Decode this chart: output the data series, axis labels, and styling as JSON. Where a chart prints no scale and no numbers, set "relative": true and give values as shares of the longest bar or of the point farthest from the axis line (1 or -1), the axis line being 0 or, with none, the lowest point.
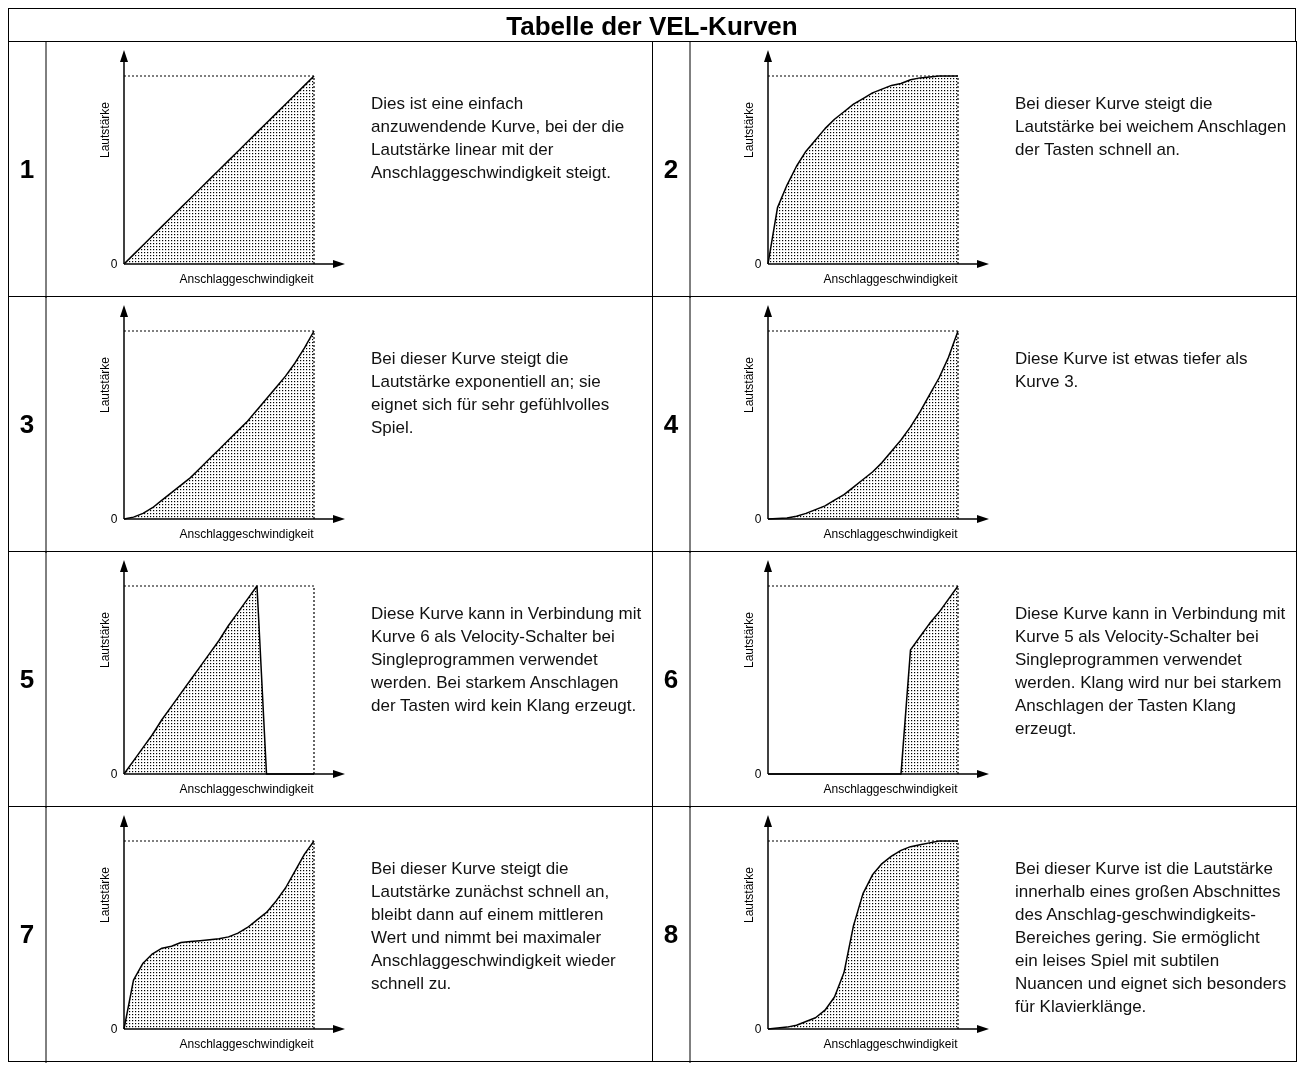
{
  "chart_data": [
    {
      "type": "other",
      "title": "Tabelle der VEL-Kurven"
    },
    {
      "type": "area",
      "title": "1",
      "relative": true,
      "categories": [
        null,
        null,
        null,
        null,
        null,
        null,
        null,
        null,
        null,
        null,
        null,
        null,
        null,
        null,
        null,
        null,
        null,
        null,
        null,
        null,
        null
      ],
      "xlabel": "Anschlaggeschwindigkeit",
      "ylabel": "Lautstärke",
      "ref_lines": [
        {
          "axis": "y",
          "value": 1,
          "line_style": "dotted"
        }
      ],
      "annotations": [
        "Dies ist eine einfach anzuwendende Kurve, bei der die Lautstärke linear mit der Anschlaggeschwindigkeit steigt.",
        "0"
      ],
      "series": [
        {
          "color": "#000000",
          "values": [
            0,
            0.05,
            0.1,
            0.15,
            0.2,
            0.25,
            0.3,
            0.35,
            0.4,
            0.45,
            0.5,
            0.55,
            0.6,
            0.65,
            0.7,
            0.75,
            0.8,
            0.85,
            0.9,
            0.95,
            1
          ]
        }
      ]
    },
    {
      "type": "area",
      "title": "2",
      "relative": true,
      "categories": [
        null,
        null,
        null,
        null,
        null,
        null,
        null,
        null,
        null,
        null,
        null,
        null,
        null,
        null,
        null,
        null,
        null,
        null,
        null,
        null,
        null
      ],
      "xlabel": "Anschlaggeschwindigkeit",
      "ylabel": "Lautstärke",
      "ref_lines": [
        {
          "axis": "y",
          "value": 1,
          "line_style": "dotted"
        }
      ],
      "annotations": [
        "Bei dieser Kurve steigt die Lautstärke bei weichem Anschlagen der Tasten schnell an.",
        "0"
      ],
      "series": [
        {
          "color": "#000000",
          "values": [
            0,
            0.3,
            0.42,
            0.52,
            0.6,
            0.66,
            0.72,
            0.77,
            0.81,
            0.85,
            0.88,
            0.91,
            0.93,
            0.95,
            0.96,
            0.98,
            0.99,
            0.995,
            1,
            1,
            1
          ]
        }
      ]
    },
    {
      "type": "area",
      "title": "3",
      "relative": true,
      "categories": [
        null,
        null,
        null,
        null,
        null,
        null,
        null,
        null,
        null,
        null,
        null,
        null,
        null,
        null,
        null,
        null,
        null,
        null,
        null,
        null,
        null
      ],
      "xlabel": "Anschlaggeschwindigkeit",
      "ylabel": "Lautstärke",
      "ref_lines": [
        {
          "axis": "y",
          "value": 1,
          "line_style": "dotted"
        }
      ],
      "annotations": [
        "Bei dieser Kurve steigt die Lautstärke exponentiell an; sie eignet sich für sehr gefühlvolles Spiel.",
        "0"
      ],
      "series": [
        {
          "color": "#000000",
          "values": [
            0,
            0.01,
            0.03,
            0.06,
            0.1,
            0.14,
            0.18,
            0.22,
            0.27,
            0.32,
            0.37,
            0.42,
            0.47,
            0.52,
            0.58,
            0.64,
            0.7,
            0.76,
            0.83,
            0.91,
            1
          ]
        }
      ]
    },
    {
      "type": "area",
      "title": "4",
      "relative": true,
      "categories": [
        null,
        null,
        null,
        null,
        null,
        null,
        null,
        null,
        null,
        null,
        null,
        null,
        null,
        null,
        null,
        null,
        null,
        null,
        null,
        null,
        null
      ],
      "xlabel": "Anschlaggeschwindigkeit",
      "ylabel": "Lautstärke",
      "ref_lines": [
        {
          "axis": "y",
          "value": 1,
          "line_style": "dotted"
        }
      ],
      "annotations": [
        "Diese Kurve ist etwas tiefer als Kurve 3.",
        "0"
      ],
      "series": [
        {
          "color": "#000000",
          "values": [
            0,
            0.002,
            0.005,
            0.015,
            0.03,
            0.05,
            0.07,
            0.1,
            0.13,
            0.17,
            0.21,
            0.25,
            0.3,
            0.36,
            0.42,
            0.49,
            0.57,
            0.66,
            0.75,
            0.86,
            1
          ]
        }
      ]
    },
    {
      "type": "area",
      "title": "5",
      "relative": true,
      "categories": [
        null,
        null,
        null,
        null,
        null,
        null,
        null,
        null,
        null,
        null,
        null,
        null,
        null,
        null,
        null,
        null,
        null,
        null,
        null,
        null,
        null
      ],
      "xlabel": "Anschlaggeschwindigkeit",
      "ylabel": "Lautstärke",
      "ref_lines": [
        {
          "axis": "y",
          "value": 1,
          "line_style": "dotted"
        }
      ],
      "annotations": [
        "Diese Kurve kann in Verbindung mit Kurve 6 als Velocity-Schalter bei Singleprogrammen verwendet werden. Bei starkem Anschlagen der Tasten wird kein Klang erzeugt.",
        "0"
      ],
      "series": [
        {
          "color": "#000000",
          "values": [
            0,
            0.07,
            0.14,
            0.21,
            0.29,
            0.36,
            0.43,
            0.5,
            0.57,
            0.64,
            0.71,
            0.79,
            0.86,
            0.93,
            1,
            0,
            0,
            0,
            0,
            0,
            0
          ]
        }
      ]
    },
    {
      "type": "area",
      "title": "6",
      "relative": true,
      "categories": [
        null,
        null,
        null,
        null,
        null,
        null,
        null,
        null,
        null,
        null,
        null,
        null,
        null,
        null,
        null,
        null,
        null,
        null,
        null,
        null,
        null
      ],
      "xlabel": "Anschlaggeschwindigkeit",
      "ylabel": "Lautstärke",
      "ref_lines": [
        {
          "axis": "y",
          "value": 1,
          "line_style": "dotted"
        }
      ],
      "annotations": [
        "Diese Kurve kann in Verbindung mit Kurve 5 als Velocity-Schalter bei Singleprogrammen verwendet werden. Klang wird nur bei starkem Anschlagen der Tasten Klang erzeugt.",
        "0"
      ],
      "series": [
        {
          "color": "#000000",
          "values": [
            0,
            0,
            0,
            0,
            0,
            0,
            0,
            0,
            0,
            0,
            0,
            0,
            0,
            0,
            0,
            0.66,
            0.73,
            0.8,
            0.86,
            0.93,
            1
          ]
        }
      ]
    },
    {
      "type": "area",
      "title": "7",
      "relative": true,
      "categories": [
        null,
        null,
        null,
        null,
        null,
        null,
        null,
        null,
        null,
        null,
        null,
        null,
        null,
        null,
        null,
        null,
        null,
        null,
        null,
        null,
        null
      ],
      "xlabel": "Anschlaggeschwindigkeit",
      "ylabel": "Lautstärke",
      "ref_lines": [
        {
          "axis": "y",
          "value": 1,
          "line_style": "dotted"
        }
      ],
      "annotations": [
        "Bei dieser Kurve steigt die Lautstärke zunächst schnell an, bleibt dann auf einem mittleren Wert und nimmt bei maximaler Anschlaggeschwindigkeit wieder schnell zu.",
        "0"
      ],
      "series": [
        {
          "color": "#000000",
          "values": [
            0,
            0.26,
            0.35,
            0.4,
            0.43,
            0.44,
            0.46,
            0.465,
            0.47,
            0.475,
            0.48,
            0.49,
            0.51,
            0.54,
            0.58,
            0.62,
            0.68,
            0.75,
            0.84,
            0.93,
            1
          ]
        }
      ]
    },
    {
      "type": "area",
      "title": "8",
      "relative": true,
      "categories": [
        null,
        null,
        null,
        null,
        null,
        null,
        null,
        null,
        null,
        null,
        null,
        null,
        null,
        null,
        null,
        null,
        null,
        null,
        null,
        null,
        null
      ],
      "xlabel": "Anschlaggeschwindigkeit",
      "ylabel": "Lautstärke",
      "ref_lines": [
        {
          "axis": "y",
          "value": 1,
          "line_style": "dotted"
        }
      ],
      "annotations": [
        "Bei dieser Kurve ist die Lautstärke innerhalb eines großen Abschnittes des Anschlag-geschwindigkeits-Bereiches gering. Sie ermöglicht ein leises Spiel mit subtilen Nuancen und eignet sich besonders für Klavierklänge.",
        "0"
      ],
      "series": [
        {
          "color": "#000000",
          "values": [
            0,
            0.005,
            0.01,
            0.02,
            0.04,
            0.06,
            0.1,
            0.17,
            0.3,
            0.55,
            0.72,
            0.82,
            0.88,
            0.92,
            0.95,
            0.97,
            0.98,
            0.99,
            1,
            1,
            1
          ]
        }
      ]
    }
  ]
}
